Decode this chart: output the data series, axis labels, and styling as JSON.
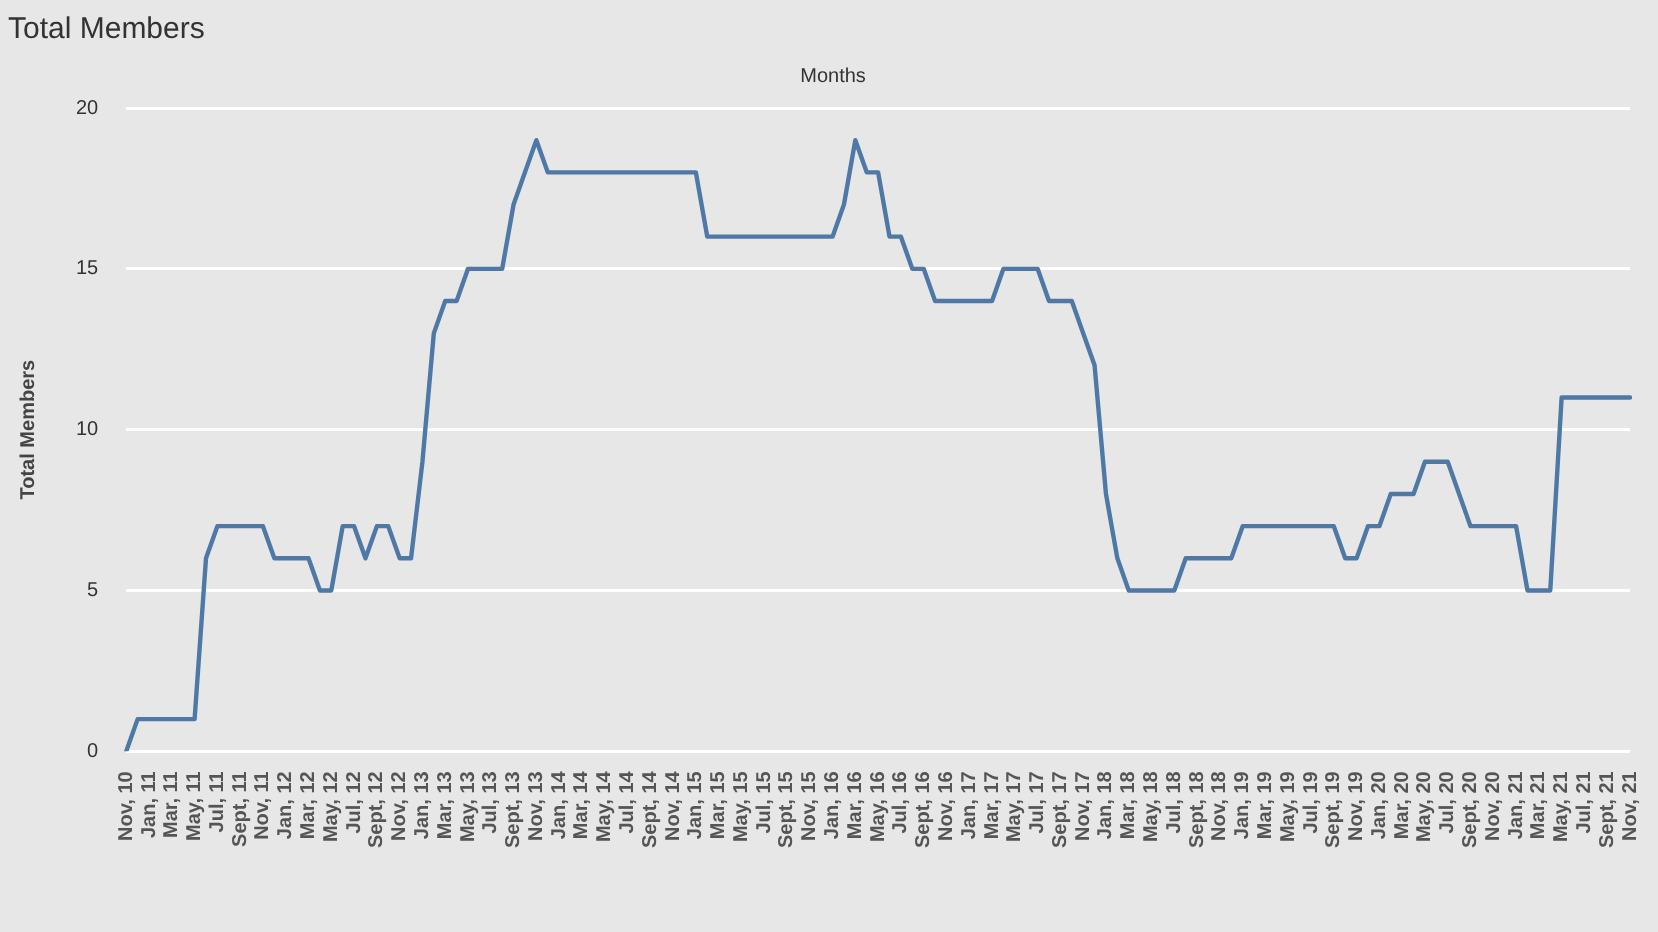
{
  "chart_data": {
    "type": "line",
    "title": "Total Members",
    "xlabel": "Months",
    "ylabel": "Total Members",
    "categories": [
      "Nov, 10",
      null,
      "Jan, 11",
      null,
      "Mar, 11",
      null,
      "May, 11",
      null,
      "Jul, 11",
      null,
      "Sept, 11",
      null,
      "Nov, 11",
      null,
      "Jan, 12",
      null,
      "Mar, 12",
      null,
      "May, 12",
      null,
      "Jul, 12",
      null,
      "Sept, 12",
      null,
      "Nov, 12",
      null,
      "Jan, 13",
      null,
      "Mar, 13",
      null,
      "May, 13",
      null,
      "Jul, 13",
      null,
      "Sept, 13",
      null,
      "Nov, 13",
      null,
      "Jan, 14",
      null,
      "Mar, 14",
      null,
      "May, 14",
      null,
      "Jul, 14",
      null,
      "Sept, 14",
      null,
      "Nov, 14",
      null,
      "Jan, 15",
      null,
      "Mar, 15",
      null,
      "May, 15",
      null,
      "Jul, 15",
      null,
      "Sept, 15",
      null,
      "Nov, 15",
      null,
      "Jan, 16",
      null,
      "Mar, 16",
      null,
      "May, 16",
      null,
      "Jul, 16",
      null,
      "Sept, 16",
      null,
      "Nov, 16",
      null,
      "Jan, 17",
      null,
      "Mar, 17",
      null,
      "May, 17",
      null,
      "Jul, 17",
      null,
      "Sept, 17",
      null,
      "Nov, 17",
      null,
      "Jan, 18",
      null,
      "Mar, 18",
      null,
      "May, 18",
      null,
      "Jul, 18",
      null,
      "Sept, 18",
      null,
      "Nov, 18",
      null,
      "Jan, 19",
      null,
      "Mar, 19",
      null,
      "May, 19",
      null,
      "Jul, 19",
      null,
      "Sept, 19",
      null,
      "Nov, 19",
      null,
      "Jan, 20",
      null,
      "Mar, 20",
      null,
      "May, 20",
      null,
      "Jul, 20",
      null,
      "Sept, 20",
      null,
      "Nov, 20",
      null,
      "Jan, 21",
      null,
      "Mar, 21",
      null,
      "May, 21",
      null,
      "Jul, 21",
      null,
      "Sept, 21",
      null,
      "Nov, 21"
    ],
    "series": [
      {
        "color": "#4e79a7",
        "values": [
          0,
          1,
          1,
          1,
          1,
          1,
          1,
          6,
          7,
          7,
          7,
          7,
          7,
          6,
          6,
          6,
          6,
          5,
          5,
          7,
          7,
          6,
          7,
          7,
          6,
          6,
          9,
          13,
          14,
          14,
          15,
          15,
          15,
          15,
          17,
          18,
          19,
          18,
          18,
          18,
          18,
          18,
          18,
          18,
          18,
          18,
          18,
          18,
          18,
          18,
          18,
          16,
          16,
          16,
          16,
          16,
          16,
          16,
          16,
          16,
          16,
          16,
          16,
          17,
          19,
          18,
          18,
          16,
          16,
          15,
          15,
          14,
          14,
          14,
          14,
          14,
          14,
          15,
          15,
          15,
          15,
          14,
          14,
          14,
          13,
          12,
          8,
          6,
          5,
          5,
          5,
          5,
          5,
          6,
          6,
          6,
          6,
          6,
          7,
          7,
          7,
          7,
          7,
          7,
          7,
          7,
          7,
          6,
          6,
          7,
          7,
          8,
          8,
          8,
          9,
          9,
          9,
          8,
          7,
          7,
          7,
          7,
          7,
          5,
          5,
          5,
          11,
          11,
          11,
          11,
          11,
          11,
          11
        ]
      }
    ],
    "ylim": [
      0,
      20
    ],
    "yticks": [
      0,
      5,
      10,
      15,
      20
    ],
    "grid": "y",
    "marker": "none",
    "line_style": "solid"
  }
}
